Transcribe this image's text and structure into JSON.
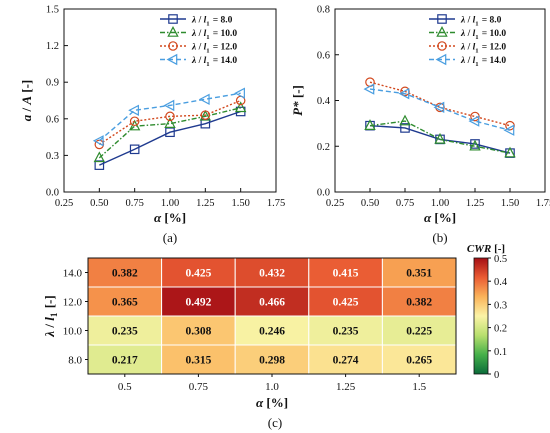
{
  "chart_data": [
    {
      "type": "line",
      "panel_label": "(a)",
      "xlabel": "α [%]",
      "ylabel": "a / A [-]",
      "xlim": [
        0.25,
        1.75
      ],
      "ylim": [
        0.0,
        1.5
      ],
      "x_ticks": [
        "0.25",
        "0.50",
        "0.75",
        "1.00",
        "1.25",
        "1.50",
        "1.75"
      ],
      "y_ticks": [
        "0.0",
        "0.3",
        "0.6",
        "0.9",
        "1.2",
        "1.5"
      ],
      "x": [
        0.5,
        0.75,
        1.0,
        1.25,
        1.5
      ],
      "legend_position": "top-right",
      "series": [
        {
          "name": "λ / l1 = 8.0",
          "values": [
            0.22,
            0.35,
            0.49,
            0.56,
            0.66
          ],
          "color": "#1f3a8f",
          "marker": "square",
          "dash": "solid"
        },
        {
          "name": "λ / l1 = 10.0",
          "values": [
            0.28,
            0.54,
            0.56,
            0.62,
            0.69
          ],
          "color": "#2e8b2e",
          "marker": "triangle",
          "dash": "dashdot"
        },
        {
          "name": "λ / l1 = 12.0",
          "values": [
            0.39,
            0.58,
            0.62,
            0.63,
            0.75
          ],
          "color": "#d2481d",
          "marker": "circle",
          "dash": "dot"
        },
        {
          "name": "λ / l1 = 14.0",
          "values": [
            0.42,
            0.67,
            0.71,
            0.76,
            0.81
          ],
          "color": "#4a9ee0",
          "marker": "ltriangle",
          "dash": "dash"
        }
      ]
    },
    {
      "type": "line",
      "panel_label": "(b)",
      "xlabel": "α [%]",
      "ylabel": "P* [-]",
      "xlim": [
        0.25,
        1.75
      ],
      "ylim": [
        0.0,
        0.8
      ],
      "x_ticks": [
        "0.25",
        "0.50",
        "0.75",
        "1.00",
        "1.25",
        "1.50",
        "1.75"
      ],
      "y_ticks": [
        "0.0",
        "0.2",
        "0.4",
        "0.6",
        "0.8"
      ],
      "x": [
        0.5,
        0.75,
        1.0,
        1.25,
        1.5
      ],
      "legend_position": "top-right",
      "series": [
        {
          "name": "λ / l1 = 8.0",
          "values": [
            0.29,
            0.28,
            0.23,
            0.21,
            0.17
          ],
          "color": "#1f3a8f",
          "marker": "square",
          "dash": "solid"
        },
        {
          "name": "λ / l1 = 10.0",
          "values": [
            0.29,
            0.31,
            0.23,
            0.2,
            0.17
          ],
          "color": "#2e8b2e",
          "marker": "triangle",
          "dash": "dashdot"
        },
        {
          "name": "λ / l1 = 12.0",
          "values": [
            0.48,
            0.44,
            0.37,
            0.33,
            0.29
          ],
          "color": "#d2481d",
          "marker": "circle",
          "dash": "dot"
        },
        {
          "name": "λ / l1 = 14.0",
          "values": [
            0.45,
            0.43,
            0.37,
            0.31,
            0.27
          ],
          "color": "#4a9ee0",
          "marker": "ltriangle",
          "dash": "dash"
        }
      ]
    },
    {
      "type": "heatmap",
      "panel_label": "(c)",
      "xlabel": "α [%]",
      "ylabel": "λ / l1 [-]",
      "x_categories": [
        "0.5",
        "0.75",
        "1.0",
        "1.25",
        "1.5"
      ],
      "y_categories": [
        "14.0",
        "12.0",
        "10.0",
        "8.0"
      ],
      "values": [
        [
          0.382,
          0.425,
          0.432,
          0.415,
          0.351
        ],
        [
          0.365,
          0.492,
          0.466,
          0.425,
          0.382
        ],
        [
          0.235,
          0.308,
          0.246,
          0.235,
          0.225
        ],
        [
          0.217,
          0.315,
          0.298,
          0.274,
          0.265
        ]
      ],
      "colorbar": {
        "title": "CWR [-]",
        "range": [
          0,
          0.5
        ],
        "ticks": [
          "0",
          "0.1",
          "0.2",
          "0.3",
          "0.4",
          "0.5"
        ],
        "colors": [
          "#0a6b3a",
          "#45b04a",
          "#b8df6e",
          "#fbf3a6",
          "#fbb35a",
          "#ea5b33",
          "#a50f15"
        ]
      }
    }
  ]
}
